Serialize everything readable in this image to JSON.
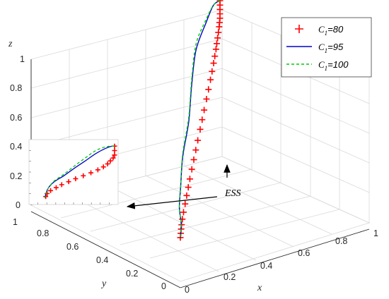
{
  "chart_data": {
    "type": "line",
    "axes": {
      "x": {
        "label": "x",
        "ticks": [
          "0",
          "0.2",
          "0.4",
          "0.6",
          "0.8",
          "1"
        ],
        "lim": [
          0,
          1
        ]
      },
      "y": {
        "label": "y",
        "ticks": [
          "0",
          "0.2",
          "0.4",
          "0.6",
          "0.8",
          "1"
        ],
        "lim": [
          0,
          1
        ]
      },
      "z": {
        "label": "z",
        "ticks": [
          "0",
          "0.2",
          "0.4",
          "0.6",
          "0.8",
          "1"
        ],
        "lim": [
          0,
          1
        ]
      }
    },
    "grid": true,
    "legend_position": "top-right",
    "series": [
      {
        "name_main": "C",
        "name_sub": "1",
        "name_value": "=80",
        "marker": "+",
        "line": "none",
        "color": "#ff0000",
        "x": [
          1,
          1,
          1,
          1,
          1,
          0.99,
          0.98,
          0.96,
          0.94,
          0.92,
          0.9,
          0.87,
          0.84,
          0.8,
          0.76,
          0.71,
          0.66,
          0.6,
          0.55,
          0.5,
          0.44,
          0.39,
          0.34,
          0.29,
          0.24,
          0.2,
          0.16,
          0.12,
          0.08,
          0.05,
          0.03,
          0.02,
          0.01,
          0
        ],
        "y": [
          1,
          1,
          1,
          1,
          1,
          0.99,
          0.98,
          0.96,
          0.94,
          0.92,
          0.9,
          0.87,
          0.84,
          0.8,
          0.76,
          0.71,
          0.66,
          0.6,
          0.55,
          0.5,
          0.44,
          0.39,
          0.34,
          0.29,
          0.24,
          0.2,
          0.16,
          0.12,
          0.08,
          0.05,
          0.03,
          0.02,
          0.01,
          0
        ],
        "z": [
          1,
          0.97,
          0.94,
          0.91,
          0.88,
          0.86,
          0.84,
          0.82,
          0.8,
          0.78,
          0.76,
          0.74,
          0.72,
          0.7,
          0.68,
          0.66,
          0.64,
          0.62,
          0.6,
          0.58,
          0.56,
          0.54,
          0.52,
          0.5,
          0.48,
          0.46,
          0.44,
          0.42,
          0.4,
          0.38,
          0.36,
          0.34,
          0.32,
          0.3
        ]
      },
      {
        "name_main": "C",
        "name_sub": "1",
        "name_value": "=95",
        "marker": "none",
        "line": "solid",
        "color": "#0000cc",
        "x": [
          1,
          0.95,
          0.85,
          0.7,
          0.55,
          0.4,
          0.25,
          0.12,
          0.05,
          0.02,
          0
        ],
        "y": [
          1,
          0.98,
          0.9,
          0.78,
          0.62,
          0.45,
          0.3,
          0.15,
          0.07,
          0.02,
          0
        ],
        "z": [
          1,
          1,
          0.97,
          0.9,
          0.8,
          0.7,
          0.6,
          0.52,
          0.45,
          0.38,
          0.3
        ]
      },
      {
        "name_main": "C",
        "name_sub": "1",
        "name_value": "=100",
        "marker": "none",
        "line": "dashed",
        "color": "#00cc00",
        "x": [
          1,
          0.95,
          0.85,
          0.7,
          0.55,
          0.4,
          0.25,
          0.12,
          0.05,
          0.02,
          0
        ],
        "y": [
          1,
          0.98,
          0.9,
          0.78,
          0.62,
          0.45,
          0.3,
          0.15,
          0.07,
          0.02,
          0
        ],
        "z": [
          1,
          1,
          0.99,
          0.94,
          0.84,
          0.73,
          0.62,
          0.53,
          0.45,
          0.38,
          0.3
        ]
      }
    ],
    "annotations": [
      {
        "text": "ESS"
      }
    ]
  }
}
